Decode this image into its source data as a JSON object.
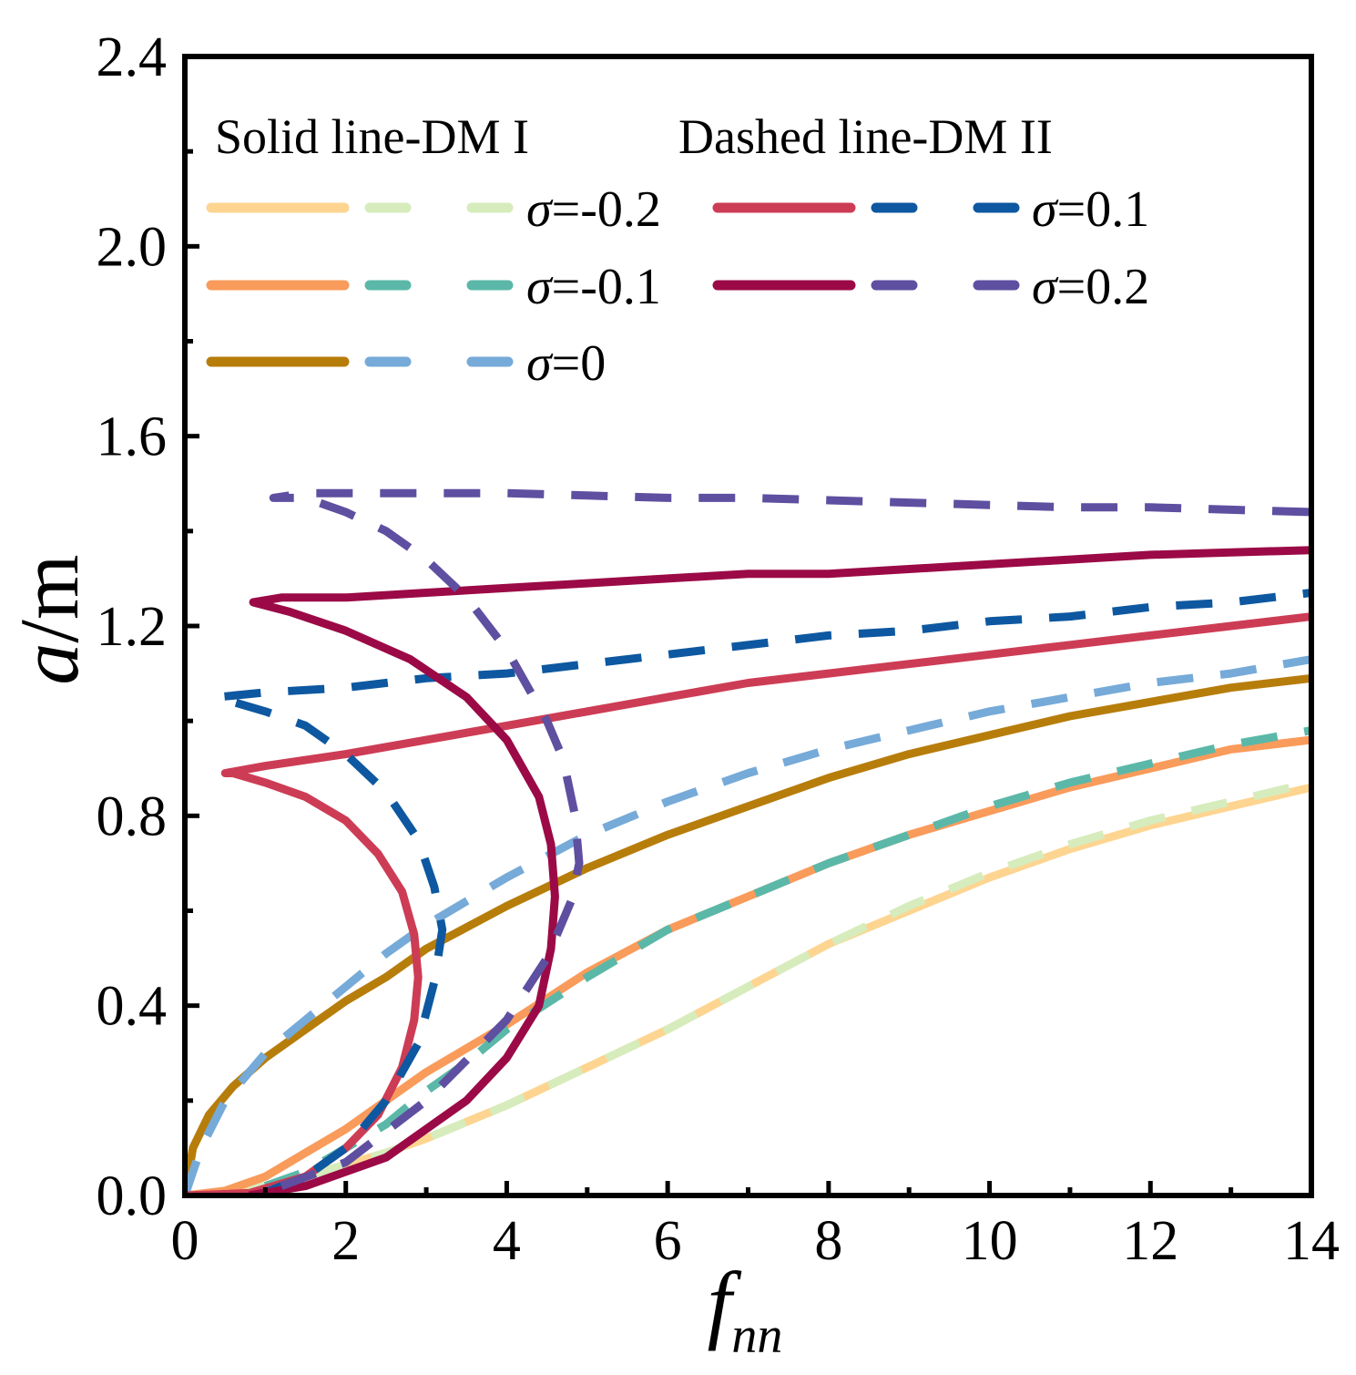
{
  "chart_data": {
    "type": "line",
    "title": "",
    "xlabel_main": "f",
    "xlabel_sub": "nn",
    "ylabel_var": "a",
    "ylabel_unit": "/m",
    "xlim": [
      0,
      14
    ],
    "ylim": [
      0,
      2.4
    ],
    "xticks": [
      "0",
      "2",
      "4",
      "6",
      "8",
      "10",
      "12",
      "14"
    ],
    "xtick_values": [
      0,
      2,
      4,
      6,
      8,
      10,
      12,
      14
    ],
    "yticks": [
      "0.0",
      "0.4",
      "0.8",
      "1.2",
      "1.6",
      "2.0",
      "2.4"
    ],
    "ytick_values": [
      0,
      0.4,
      0.8,
      1.2,
      1.6,
      2.0,
      2.4
    ],
    "legend_note_solid": "Solid line-DM I",
    "legend_note_dashed": "Dashed line-DM II",
    "legend": [
      {
        "sigma": "σ",
        "label": "=-0.2",
        "solid_color": "#fdd591",
        "dashed_color": "#d6ecbc"
      },
      {
        "sigma": "σ",
        "label": "=-0.1",
        "solid_color": "#f99b5b",
        "dashed_color": "#5bb8a8"
      },
      {
        "sigma": "σ",
        "label": "=0",
        "solid_color": "#b77d0b",
        "dashed_color": "#76aad8"
      },
      {
        "sigma": "σ",
        "label": "=0.1",
        "solid_color": "#cd3c55",
        "dashed_color": "#0d58a0"
      },
      {
        "sigma": "σ",
        "label": "=0.2",
        "solid_color": "#9b0a46",
        "dashed_color": "#5f4fa0"
      }
    ],
    "series": [
      {
        "name": "σ=-0.2 DM I",
        "style": "solid",
        "color": "#fdd591",
        "x": [
          0,
          0.5,
          1,
          1.5,
          2,
          2.5,
          3,
          4,
          5,
          6,
          7,
          8,
          9,
          10,
          11,
          12,
          13,
          14
        ],
        "y": [
          0,
          0.005,
          0.02,
          0.04,
          0.065,
          0.09,
          0.12,
          0.19,
          0.27,
          0.35,
          0.44,
          0.53,
          0.6,
          0.67,
          0.73,
          0.78,
          0.82,
          0.86
        ]
      },
      {
        "name": "σ=-0.2 DM II",
        "style": "dashed",
        "color": "#d6ecbc",
        "x": [
          0,
          0.5,
          1,
          1.5,
          2,
          2.5,
          3,
          4,
          5,
          6,
          7,
          8,
          9,
          10,
          11,
          12,
          13,
          14
        ],
        "y": [
          0,
          0.005,
          0.02,
          0.04,
          0.065,
          0.09,
          0.12,
          0.19,
          0.27,
          0.35,
          0.44,
          0.53,
          0.61,
          0.68,
          0.74,
          0.79,
          0.83,
          0.87
        ]
      },
      {
        "name": "σ=-0.1 DM I",
        "style": "solid",
        "color": "#f99b5b",
        "x": [
          0,
          0.5,
          1,
          1.5,
          2,
          2.5,
          3,
          4,
          5,
          6,
          7,
          8,
          9,
          10,
          11,
          12,
          13,
          14
        ],
        "y": [
          0,
          0.01,
          0.04,
          0.09,
          0.14,
          0.2,
          0.26,
          0.36,
          0.47,
          0.56,
          0.63,
          0.7,
          0.76,
          0.81,
          0.86,
          0.9,
          0.94,
          0.96
        ]
      },
      {
        "name": "σ=-0.1 DM II",
        "style": "dashed",
        "color": "#5bb8a8",
        "x": [
          1,
          1.5,
          2,
          2.5,
          3,
          3.5,
          4,
          5,
          6,
          7,
          8,
          9,
          10,
          11,
          12,
          13,
          14
        ],
        "y": [
          0.02,
          0.05,
          0.1,
          0.15,
          0.22,
          0.28,
          0.35,
          0.46,
          0.56,
          0.63,
          0.7,
          0.76,
          0.82,
          0.87,
          0.91,
          0.95,
          0.98
        ]
      },
      {
        "name": "σ=0 DM I",
        "style": "solid",
        "color": "#b77d0b",
        "x": [
          0,
          0.1,
          0.3,
          0.6,
          1,
          1.5,
          2,
          2.5,
          3,
          4,
          5,
          6,
          7,
          8,
          9,
          10,
          11,
          12,
          13,
          14
        ],
        "y": [
          0,
          0.1,
          0.17,
          0.23,
          0.29,
          0.35,
          0.41,
          0.46,
          0.52,
          0.61,
          0.69,
          0.76,
          0.82,
          0.88,
          0.93,
          0.97,
          1.01,
          1.04,
          1.07,
          1.09
        ]
      },
      {
        "name": "σ=0 DM II",
        "style": "dashed",
        "color": "#76aad8",
        "x": [
          0,
          0.2,
          0.5,
          1,
          1.5,
          2,
          2.5,
          3,
          4,
          5,
          6,
          7,
          8,
          9,
          10,
          11,
          12,
          13,
          14
        ],
        "y": [
          0,
          0.1,
          0.2,
          0.3,
          0.37,
          0.44,
          0.51,
          0.57,
          0.67,
          0.76,
          0.83,
          0.89,
          0.94,
          0.98,
          1.02,
          1.05,
          1.08,
          1.1,
          1.13
        ]
      },
      {
        "name": "σ=0.1 DM I",
        "style": "solid",
        "color": "#cd3c55",
        "x": [
          0,
          0.8,
          1.5,
          2,
          2.4,
          2.7,
          2.85,
          2.9,
          2.85,
          2.7,
          2.4,
          2,
          1.5,
          1,
          0.6,
          0.5,
          1,
          2,
          3,
          4,
          5,
          6,
          7,
          8,
          9,
          10,
          11,
          12,
          13,
          14
        ],
        "y": [
          0,
          0.005,
          0.04,
          0.1,
          0.17,
          0.27,
          0.37,
          0.46,
          0.55,
          0.64,
          0.72,
          0.79,
          0.84,
          0.87,
          0.89,
          0.89,
          0.905,
          0.93,
          0.96,
          0.99,
          1.02,
          1.05,
          1.08,
          1.1,
          1.12,
          1.14,
          1.16,
          1.18,
          1.2,
          1.22
        ]
      },
      {
        "name": "σ=0.1 DM II",
        "style": "dashed",
        "color": "#0d58a0",
        "x": [
          0.9,
          1.5,
          2,
          2.5,
          2.9,
          3.1,
          3.2,
          3.1,
          2.9,
          2.5,
          2,
          1.5,
          1,
          0.4,
          1,
          2,
          3,
          4,
          5,
          6,
          7,
          8,
          9,
          10,
          11,
          12,
          13,
          14
        ],
        "y": [
          0,
          0.04,
          0.1,
          0.2,
          0.32,
          0.45,
          0.56,
          0.65,
          0.75,
          0.85,
          0.93,
          0.99,
          1.02,
          1.05,
          1.06,
          1.07,
          1.09,
          1.1,
          1.12,
          1.14,
          1.16,
          1.18,
          1.19,
          1.21,
          1.22,
          1.24,
          1.25,
          1.27
        ]
      },
      {
        "name": "σ=0.2 DM I",
        "style": "solid",
        "color": "#9b0a46",
        "x": [
          0.8,
          1.5,
          2.5,
          3.5,
          4,
          4.4,
          4.55,
          4.6,
          4.55,
          4.4,
          4,
          3.5,
          2.8,
          2,
          1.3,
          0.85,
          1.2,
          2,
          3,
          4,
          5,
          6,
          7,
          8,
          9,
          10,
          11,
          12,
          13,
          14
        ],
        "y": [
          0,
          0.02,
          0.08,
          0.2,
          0.29,
          0.4,
          0.52,
          0.63,
          0.74,
          0.84,
          0.96,
          1.05,
          1.13,
          1.19,
          1.23,
          1.25,
          1.26,
          1.26,
          1.27,
          1.28,
          1.29,
          1.3,
          1.31,
          1.31,
          1.32,
          1.33,
          1.34,
          1.35,
          1.355,
          1.36
        ]
      },
      {
        "name": "σ=0.2 DM II",
        "style": "dashed",
        "color": "#5f4fa0",
        "x": [
          1.2,
          2,
          3,
          4,
          4.5,
          4.8,
          4.9,
          4.85,
          4.7,
          4.5,
          4,
          3.5,
          3,
          2.5,
          2,
          1.5,
          1.1,
          1.5,
          2,
          3,
          4,
          5,
          6,
          7,
          8,
          9,
          10,
          11,
          12,
          13,
          14
        ],
        "y": [
          0.02,
          0.07,
          0.2,
          0.37,
          0.5,
          0.62,
          0.7,
          0.8,
          0.92,
          1.0,
          1.15,
          1.26,
          1.34,
          1.4,
          1.44,
          1.47,
          1.47,
          1.48,
          1.48,
          1.48,
          1.48,
          1.475,
          1.47,
          1.47,
          1.465,
          1.46,
          1.455,
          1.45,
          1.45,
          1.445,
          1.44
        ]
      }
    ]
  }
}
